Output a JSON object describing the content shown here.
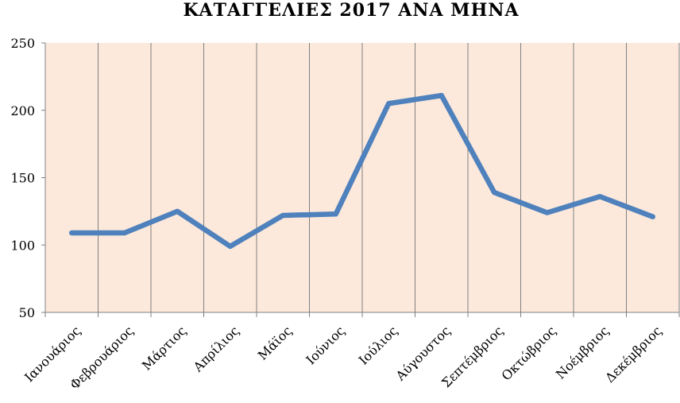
{
  "chart_data": {
    "type": "line",
    "title": "ΚΑΤΑΓΓΕΛΙΕΣ 2017 ΑΝΑ ΜΗΝΑ",
    "categories": [
      "Ιανουάριος",
      "Φεβρουάριος",
      "Μάρτιος",
      "Απρίλιος",
      "Μάϊος",
      "Ιούνιος",
      "Ιούλιος",
      "Αύγουστος",
      "Σεπτέμβριος",
      "Οκτώβριος",
      "Νοέμβριος",
      "Δεκέμβριος"
    ],
    "values": [
      109,
      109,
      125,
      99,
      122,
      123,
      205,
      211,
      139,
      124,
      136,
      121
    ],
    "ylim": [
      50,
      250
    ],
    "yticks": [
      "50",
      "100",
      "150",
      "200",
      "250"
    ],
    "grid": "vertical",
    "colors": {
      "line": "#4F81BD",
      "plot_background": "#FCE9DC",
      "grid": "#808080"
    }
  }
}
